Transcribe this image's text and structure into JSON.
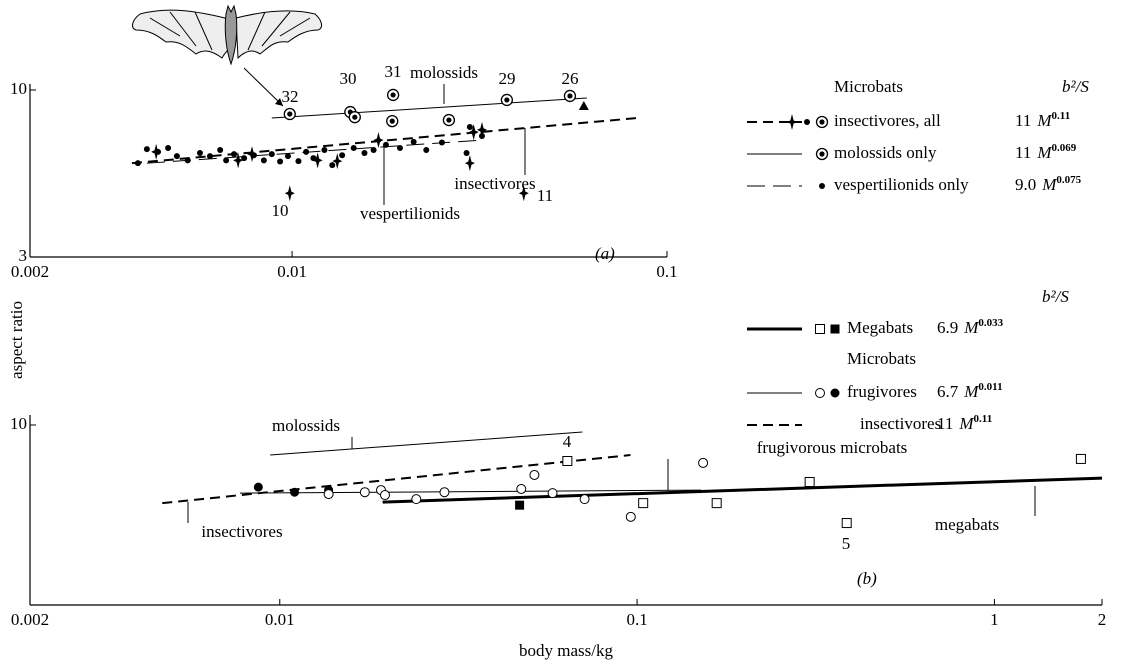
{
  "y_axis_label": "aspect ratio",
  "x_axis_label": "body mass/kg",
  "variable": "M",
  "chart_data": [
    {
      "type": "scatter",
      "panel_label": "(a)",
      "log_x": true,
      "log_y": true,
      "xlim": [
        0.002,
        0.1
      ],
      "ylim": [
        3,
        10
      ],
      "xticks": [
        0.002,
        0.01,
        0.1
      ],
      "yticks": [
        3,
        10
      ],
      "series": [
        {
          "marker": "dot",
          "color": "#000",
          "x": [
            0.00388,
            0.0041,
            0.00439,
            0.00467,
            0.00493,
            0.00527,
            0.00568,
            0.00604,
            0.00643,
            0.00667,
            0.007,
            0.00745,
            0.00791,
            0.00841,
            0.00883,
            0.00929,
            0.00975,
            0.0104,
            0.0109,
            0.0114,
            0.0122,
            0.0128,
            0.0136,
            0.0146,
            0.0156,
            0.0165,
            0.0178,
            0.0194,
            0.0211,
            0.0228,
            0.0251,
            0.0292,
            0.0298,
            0.0321
          ],
          "values": [
            5.9,
            6.53,
            6.4,
            6.58,
            6.21,
            6.02,
            6.35,
            6.21,
            6.49,
            6.02,
            6.3,
            6.12,
            6.25,
            6.02,
            6.3,
            5.97,
            6.21,
            5.99,
            6.4,
            6.12,
            6.49,
            5.82,
            6.25,
            6.58,
            6.35,
            6.49,
            6.73,
            6.58,
            6.88,
            6.49,
            6.85,
            6.35,
            7.66,
            7.18
          ]
        },
        {
          "marker": "star",
          "color": "#000",
          "x": [
            0.00434,
            0.00718,
            0.00782,
            0.00986,
            0.0117,
            0.0132,
            0.017,
            0.0298,
            0.0305,
            0.0321,
            0.0415
          ],
          "values": [
            6.4,
            6.02,
            6.3,
            4.75,
            6.02,
            5.99,
            6.97,
            5.9,
            7.38,
            7.5,
            4.75
          ]
        },
        {
          "marker": "double-circle",
          "color": "#000",
          "x": [
            0.00986,
            0.0143,
            0.0147,
            0.0186,
            0.0185,
            0.0262,
            0.0374,
            0.0551
          ],
          "values": [
            8.41,
            8.53,
            8.22,
            9.65,
            7.99,
            8.05,
            9.31,
            9.58
          ]
        },
        {
          "marker": "triangle",
          "color": "#000",
          "x": [
            0.06
          ],
          "values": [
            8.91
          ]
        }
      ],
      "fits": [
        {
          "style": "solid-thin",
          "x": [
            0.00883,
            0.0611
          ],
          "values": [
            8.17,
            9.44
          ]
        },
        {
          "style": "dashed",
          "x": [
            0.00374,
            0.0832
          ],
          "values": [
            5.9,
            8.17
          ]
        },
        {
          "style": "long-dash",
          "x": [
            0.0041,
            0.0321
          ],
          "values": [
            5.9,
            6.97
          ]
        }
      ],
      "annotations": [
        "molossids",
        "insectivores",
        "vespertilionids"
      ],
      "point_labels": [
        "32",
        "30",
        "31",
        "29",
        "26",
        "10",
        "11"
      ],
      "legend": {
        "group": "Microbats",
        "header": "b²/S",
        "entries": [
          {
            "label": "insectivores, all",
            "coefficient": "11",
            "exponent": "0.11"
          },
          {
            "label": "molossids only",
            "coefficient": "11",
            "exponent": "0.069"
          },
          {
            "label": "vespertilionids only",
            "coefficient": "9.0",
            "exponent": "0.075"
          }
        ]
      }
    },
    {
      "type": "scatter",
      "panel_label": "(b)",
      "log_x": true,
      "log_y": true,
      "xlim": [
        0.002,
        2
      ],
      "ylim": [
        3,
        10
      ],
      "xticks": [
        0.002,
        0.01,
        0.1,
        1,
        2
      ],
      "yticks": [
        10
      ],
      "series": [
        {
          "marker": "open-square",
          "color": "#000",
          "x": [
            0.0638,
            0.104,
            0.167,
            0.304,
            0.386,
            1.746
          ],
          "values": [
            7.86,
            5.93,
            5.93,
            6.83,
            5.19,
            7.97
          ]
        },
        {
          "marker": "filled-square",
          "color": "#000",
          "x": [
            0.0469
          ],
          "values": [
            5.85
          ]
        },
        {
          "marker": "filled-circle",
          "color": "#000",
          "x": [
            0.00871,
            0.011,
            0.0137
          ],
          "values": [
            6.6,
            6.38,
            6.47
          ]
        },
        {
          "marker": "open-circle",
          "color": "#000",
          "x": [
            0.0137,
            0.0173,
            0.0192,
            0.0197,
            0.0241,
            0.0289,
            0.0474,
            0.0516,
            0.058,
            0.0713,
            0.096,
            0.153
          ],
          "values": [
            6.3,
            6.38,
            6.47,
            6.26,
            6.09,
            6.38,
            6.52,
            7.16,
            6.34,
            6.09,
            5.41,
            7.76
          ]
        }
      ],
      "fits": [
        {
          "style": "solid-thick",
          "x": [
            0.0194,
            2
          ],
          "values": [
            5.97,
            7.01
          ]
        },
        {
          "style": "solid-thin",
          "x": [
            0.00774,
            0.151
          ],
          "values": [
            6.34,
            6.47
          ]
        },
        {
          "style": "dashed",
          "x": [
            0.00469,
            0.0958
          ],
          "values": [
            5.93,
            8.18
          ]
        },
        {
          "style": "solid-thin",
          "x": [
            0.0094,
            0.0703
          ],
          "values": [
            8.18,
            9.54
          ]
        }
      ],
      "annotations": [
        "molossids",
        "insectivores",
        "frugivorous microbats",
        "megabats"
      ],
      "point_labels": [
        "4",
        "5"
      ],
      "legend": {
        "group": "Microbats",
        "header": "b²/S",
        "entries": [
          {
            "label": "Megabats",
            "coefficient": "6.9",
            "exponent": "0.033"
          },
          {
            "label": "frugivores",
            "coefficient": "6.7",
            "exponent": "0.011"
          },
          {
            "label": "insectivores",
            "coefficient": "11",
            "exponent": "0.11"
          }
        ]
      }
    }
  ]
}
